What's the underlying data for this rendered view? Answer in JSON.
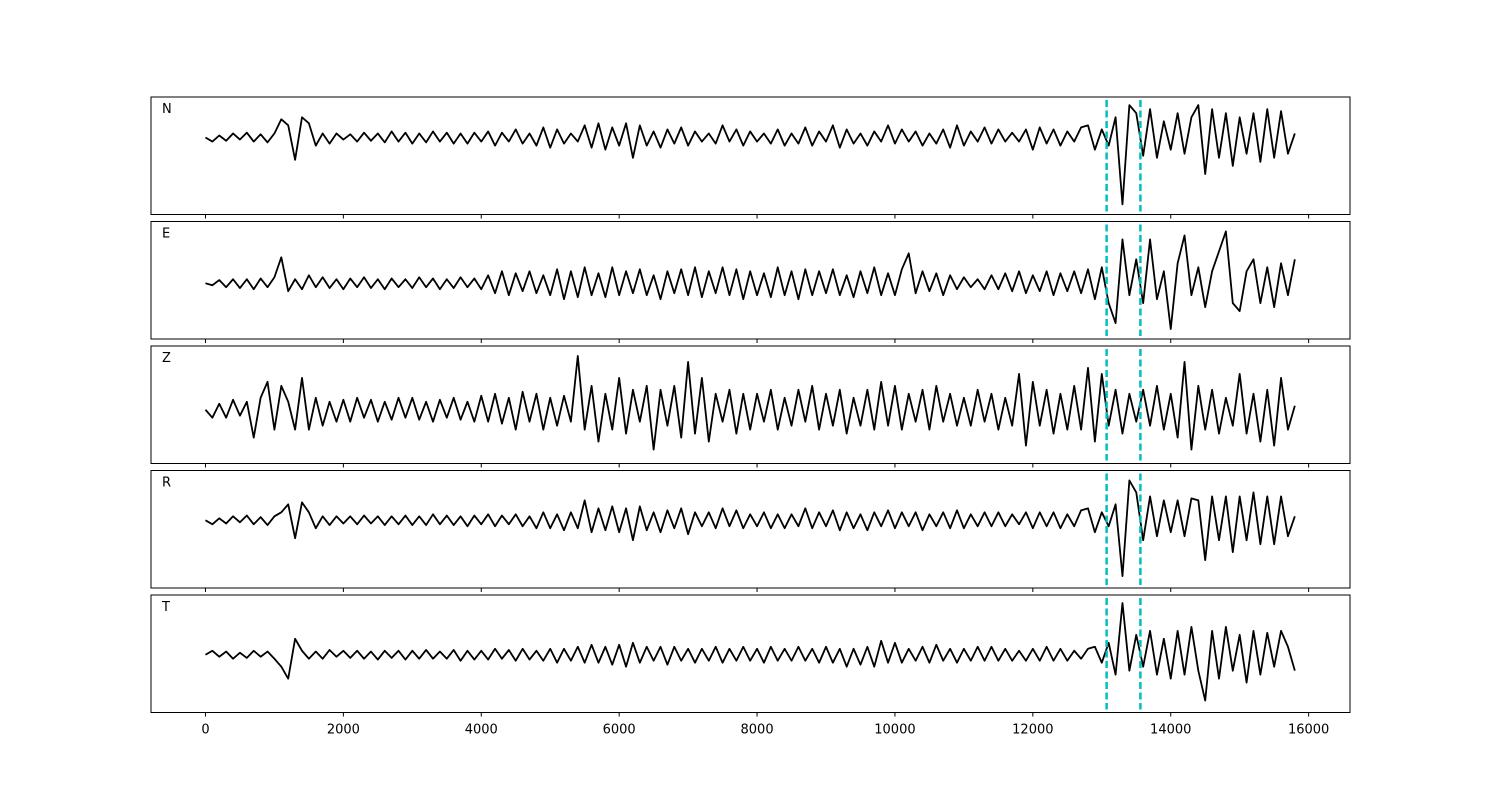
{
  "chart_data": {
    "type": "line",
    "x": [
      0,
      100,
      200,
      300,
      400,
      500,
      600,
      700,
      800,
      900,
      1000,
      1100,
      1200,
      1300,
      1400,
      1500,
      1600,
      1700,
      1800,
      1900,
      2000,
      2100,
      2200,
      2300,
      2400,
      2500,
      2600,
      2700,
      2800,
      2900,
      3000,
      3100,
      3200,
      3300,
      3400,
      3500,
      3600,
      3700,
      3800,
      3900,
      4000,
      4100,
      4200,
      4300,
      4400,
      4500,
      4600,
      4700,
      4800,
      4900,
      5000,
      5100,
      5200,
      5300,
      5400,
      5500,
      5600,
      5700,
      5800,
      5900,
      6000,
      6100,
      6200,
      6300,
      6400,
      6500,
      6600,
      6700,
      6800,
      6900,
      7000,
      7100,
      7200,
      7300,
      7400,
      7500,
      7600,
      7700,
      7800,
      7900,
      8000,
      8100,
      8200,
      8300,
      8400,
      8500,
      8600,
      8700,
      8800,
      8900,
      9000,
      9100,
      9200,
      9300,
      9400,
      9500,
      9600,
      9700,
      9800,
      9900,
      10000,
      10100,
      10200,
      10300,
      10400,
      10500,
      10600,
      10700,
      10800,
      10900,
      11000,
      11100,
      11200,
      11300,
      11400,
      11500,
      11600,
      11700,
      11800,
      11900,
      12000,
      12100,
      12200,
      12300,
      12400,
      12500,
      12600,
      12700,
      12800,
      12900,
      13000,
      13100,
      13200,
      13300,
      13400,
      13500,
      13600,
      13700,
      13800,
      13900,
      14000,
      14100,
      14200,
      14300,
      14400,
      14500,
      14600,
      14700,
      14800,
      14900,
      15000,
      15100,
      15200,
      15300,
      15400,
      15500,
      15600,
      15700,
      15800
    ],
    "xlim": [
      -790,
      16600
    ],
    "xticks": [
      0,
      2000,
      4000,
      6000,
      8000,
      10000,
      12000,
      14000,
      16000
    ],
    "markers": [
      13070,
      13560
    ],
    "marker_color": "#00bfbf",
    "series": [
      {
        "name": "N",
        "color": "#000000",
        "ylim": [
          -1.9,
          1.0
        ],
        "values": [
          0,
          -0.1,
          0.05,
          -0.08,
          0.1,
          -0.05,
          0.12,
          -0.1,
          0.08,
          -0.12,
          0.1,
          0.45,
          0.3,
          -0.55,
          0.5,
          0.35,
          -0.2,
          0.1,
          -0.15,
          0.1,
          -0.05,
          0.08,
          -0.1,
          0.12,
          -0.08,
          0.1,
          -0.12,
          0.15,
          -0.1,
          0.12,
          -0.15,
          0.1,
          -0.12,
          0.15,
          -0.1,
          0.12,
          -0.15,
          0.1,
          -0.15,
          0.12,
          -0.1,
          0.15,
          -0.2,
          0.12,
          -0.1,
          0.2,
          -0.15,
          0.1,
          -0.2,
          0.25,
          -0.25,
          0.2,
          -0.15,
          0.1,
          -0.1,
          0.3,
          -0.25,
          0.35,
          -0.3,
          0.25,
          -0.2,
          0.35,
          -0.5,
          0.3,
          -0.2,
          0.15,
          -0.25,
          0.2,
          -0.15,
          0.25,
          -0.2,
          0.15,
          -0.1,
          0.1,
          -0.15,
          0.3,
          -0.1,
          0.2,
          -0.2,
          0.15,
          -0.1,
          0.1,
          -0.15,
          0.2,
          -0.2,
          0.1,
          -0.15,
          0.25,
          -0.2,
          0.15,
          -0.1,
          0.3,
          -0.25,
          0.2,
          -0.15,
          0.1,
          -0.2,
          0.15,
          -0.1,
          0.3,
          -0.15,
          0.2,
          -0.1,
          0.15,
          -0.2,
          0.1,
          -0.15,
          0.2,
          -0.25,
          0.3,
          -0.2,
          0.15,
          -0.1,
          0.25,
          -0.15,
          0.2,
          -0.1,
          0.12,
          -0.1,
          0.2,
          -0.3,
          0.25,
          -0.15,
          0.2,
          -0.2,
          0.15,
          -0.1,
          0.25,
          0.3,
          -0.3,
          0.2,
          -0.2,
          0.5,
          -1.65,
          0.8,
          0.6,
          -0.45,
          0.7,
          -0.5,
          0.4,
          -0.3,
          0.6,
          -0.4,
          0.5,
          0.8,
          -0.9,
          0.7,
          -0.5,
          0.6,
          -0.7,
          0.5,
          -0.4,
          0.6,
          -0.6,
          0.7,
          -0.5,
          0.65,
          -0.4,
          0.1
        ]
      },
      {
        "name": "E",
        "color": "#000000",
        "ylim": [
          -1.4,
          1.55
        ],
        "values": [
          0,
          -0.05,
          0.08,
          -0.1,
          0.1,
          -0.12,
          0.1,
          -0.15,
          0.12,
          -0.1,
          0.15,
          0.65,
          -0.2,
          0.1,
          -0.15,
          0.2,
          -0.1,
          0.15,
          -0.12,
          0.1,
          -0.15,
          0.12,
          -0.1,
          0.15,
          -0.12,
          0.1,
          -0.15,
          0.12,
          -0.1,
          0.1,
          -0.12,
          0.15,
          -0.1,
          0.12,
          -0.15,
          0.1,
          -0.12,
          0.15,
          -0.1,
          0.12,
          -0.15,
          0.2,
          -0.25,
          0.3,
          -0.3,
          0.25,
          -0.2,
          0.3,
          -0.25,
          0.2,
          -0.3,
          0.35,
          -0.4,
          0.3,
          -0.35,
          0.4,
          -0.3,
          0.25,
          -0.35,
          0.4,
          -0.3,
          0.3,
          -0.25,
          0.35,
          -0.3,
          0.2,
          -0.4,
          0.3,
          -0.25,
          0.35,
          -0.3,
          0.4,
          -0.35,
          0.3,
          -0.25,
          0.4,
          -0.3,
          0.35,
          -0.4,
          0.3,
          -0.3,
          0.25,
          -0.35,
          0.4,
          -0.3,
          0.3,
          -0.4,
          0.35,
          -0.3,
          0.3,
          -0.25,
          0.35,
          -0.3,
          0.2,
          -0.35,
          0.3,
          -0.25,
          0.4,
          -0.3,
          0.25,
          -0.3,
          0.35,
          0.75,
          -0.25,
          0.3,
          -0.2,
          0.25,
          -0.3,
          0.2,
          -0.15,
          0.15,
          -0.1,
          0.1,
          -0.15,
          0.2,
          -0.15,
          0.25,
          -0.2,
          0.3,
          -0.25,
          0.2,
          -0.2,
          0.3,
          -0.3,
          0.25,
          -0.2,
          0.3,
          -0.25,
          0.35,
          -0.4,
          0.4,
          -0.5,
          -1.0,
          1.1,
          -0.3,
          0.6,
          -0.5,
          1.1,
          -0.4,
          0.3,
          -1.15,
          0.5,
          1.2,
          -0.3,
          0.4,
          -0.6,
          0.3,
          0.8,
          1.3,
          -0.5,
          -0.7,
          0.3,
          0.6,
          -0.5,
          0.4,
          -0.6,
          0.5,
          -0.3,
          0.6
        ]
      },
      {
        "name": "Z",
        "color": "#000000",
        "ylim": [
          -1.35,
          1.6
        ],
        "values": [
          0,
          -0.2,
          0.15,
          -0.2,
          0.25,
          -0.15,
          0.2,
          -0.7,
          0.3,
          0.7,
          -0.5,
          0.6,
          0.2,
          -0.5,
          0.8,
          -0.5,
          0.3,
          -0.4,
          0.2,
          -0.3,
          0.25,
          -0.3,
          0.3,
          -0.2,
          0.25,
          -0.3,
          0.2,
          -0.25,
          0.3,
          -0.2,
          0.3,
          -0.25,
          0.2,
          -0.3,
          0.25,
          -0.2,
          0.3,
          -0.25,
          0.2,
          -0.3,
          0.35,
          -0.3,
          0.4,
          -0.35,
          0.3,
          -0.5,
          0.45,
          -0.3,
          0.4,
          -0.5,
          0.3,
          -0.4,
          0.35,
          -0.3,
          1.35,
          -0.5,
          0.6,
          -0.8,
          0.4,
          -0.5,
          0.8,
          -0.6,
          0.5,
          -0.3,
          0.6,
          -1.0,
          0.5,
          -0.4,
          0.6,
          -0.7,
          1.2,
          -0.6,
          0.8,
          -0.8,
          0.4,
          -0.3,
          0.5,
          -0.6,
          0.4,
          -0.5,
          0.4,
          -0.3,
          0.5,
          -0.5,
          0.3,
          -0.4,
          0.5,
          -0.3,
          0.6,
          -0.5,
          0.4,
          -0.4,
          0.5,
          -0.6,
          0.3,
          -0.4,
          0.5,
          -0.5,
          0.7,
          -0.4,
          0.6,
          -0.5,
          0.4,
          -0.3,
          0.5,
          -0.5,
          0.6,
          -0.3,
          0.4,
          -0.4,
          0.3,
          -0.4,
          0.5,
          -0.3,
          0.4,
          -0.5,
          0.3,
          -0.4,
          0.9,
          -0.9,
          0.7,
          -0.4,
          0.5,
          -0.6,
          0.4,
          -0.5,
          0.6,
          -0.5,
          1.05,
          -0.8,
          0.9,
          -0.4,
          0.5,
          -0.6,
          0.4,
          -0.3,
          0.5,
          -0.4,
          0.6,
          -0.5,
          0.4,
          -0.7,
          1.2,
          -1.0,
          0.6,
          -0.5,
          0.5,
          -0.6,
          0.3,
          -0.4,
          0.9,
          -0.6,
          0.4,
          -0.8,
          0.5,
          -0.9,
          0.8,
          -0.5,
          0.1
        ]
      },
      {
        "name": "R",
        "color": "#000000",
        "ylim": [
          -1.7,
          1.25
        ],
        "values": [
          0,
          -0.1,
          0.05,
          -0.08,
          0.1,
          -0.05,
          0.12,
          -0.1,
          0.08,
          -0.12,
          0.1,
          0.2,
          0.4,
          -0.45,
          0.45,
          0.2,
          -0.2,
          0.1,
          -0.12,
          0.1,
          -0.08,
          0.1,
          -0.1,
          0.12,
          -0.08,
          0.1,
          -0.12,
          0.1,
          -0.1,
          0.12,
          -0.12,
          0.1,
          -0.12,
          0.15,
          -0.1,
          0.12,
          -0.12,
          0.1,
          -0.15,
          0.12,
          -0.1,
          0.15,
          -0.15,
          0.12,
          -0.1,
          0.15,
          -0.15,
          0.1,
          -0.2,
          0.2,
          -0.2,
          0.15,
          -0.25,
          0.2,
          -0.2,
          0.5,
          -0.3,
          0.3,
          -0.25,
          0.35,
          -0.3,
          0.3,
          -0.5,
          0.35,
          -0.25,
          0.2,
          -0.3,
          0.25,
          -0.2,
          0.3,
          -0.35,
          0.2,
          -0.15,
          0.2,
          -0.2,
          0.3,
          -0.15,
          0.25,
          -0.2,
          0.15,
          -0.15,
          0.2,
          -0.2,
          0.15,
          -0.2,
          0.15,
          -0.15,
          0.3,
          -0.2,
          0.2,
          -0.15,
          0.25,
          -0.25,
          0.2,
          -0.2,
          0.15,
          -0.25,
          0.2,
          -0.15,
          0.25,
          -0.2,
          0.2,
          -0.15,
          0.2,
          -0.25,
          0.15,
          -0.15,
          0.2,
          -0.2,
          0.25,
          -0.2,
          0.15,
          -0.15,
          0.2,
          -0.15,
          0.2,
          -0.15,
          0.15,
          -0.1,
          0.2,
          -0.2,
          0.2,
          -0.15,
          0.2,
          -0.2,
          0.15,
          -0.15,
          0.25,
          0.3,
          -0.3,
          0.2,
          -0.15,
          0.4,
          -1.4,
          1.0,
          0.7,
          -0.5,
          0.6,
          -0.4,
          0.5,
          -0.3,
          0.5,
          -0.4,
          0.55,
          0.5,
          -1.0,
          0.6,
          -0.5,
          0.6,
          -0.8,
          0.6,
          -0.5,
          0.7,
          -0.6,
          0.6,
          -0.6,
          0.6,
          -0.4,
          0.1
        ]
      },
      {
        "name": "T",
        "color": "#000000",
        "ylim": [
          -1.45,
          1.5
        ],
        "values": [
          0,
          0.1,
          -0.05,
          0.08,
          -0.1,
          0.05,
          -0.08,
          0.1,
          -0.05,
          0.08,
          -0.1,
          -0.3,
          -0.6,
          0.4,
          0.1,
          -0.1,
          0.08,
          -0.1,
          0.12,
          -0.05,
          0.1,
          -0.08,
          0.1,
          -0.1,
          0.08,
          -0.12,
          0.1,
          -0.08,
          0.1,
          -0.12,
          0.1,
          -0.1,
          0.12,
          -0.1,
          0.08,
          -0.1,
          0.12,
          -0.15,
          0.1,
          -0.12,
          0.1,
          -0.12,
          0.15,
          -0.1,
          0.12,
          -0.15,
          0.15,
          -0.12,
          0.1,
          -0.15,
          0.15,
          -0.2,
          0.15,
          -0.15,
          0.2,
          -0.2,
          0.25,
          -0.2,
          0.2,
          -0.25,
          0.25,
          -0.3,
          0.3,
          -0.2,
          0.2,
          -0.15,
          0.2,
          -0.25,
          0.2,
          -0.15,
          0.15,
          -0.2,
          0.15,
          -0.15,
          0.2,
          -0.2,
          0.15,
          -0.15,
          0.2,
          -0.15,
          0.15,
          -0.2,
          0.2,
          -0.15,
          0.15,
          -0.15,
          0.2,
          -0.15,
          0.15,
          -0.2,
          0.2,
          -0.2,
          0.15,
          -0.3,
          0.15,
          -0.25,
          0.2,
          -0.3,
          0.35,
          -0.2,
          0.3,
          -0.2,
          0.15,
          -0.15,
          0.2,
          -0.2,
          0.25,
          -0.15,
          0.15,
          -0.2,
          0.15,
          -0.15,
          0.2,
          -0.15,
          0.2,
          -0.15,
          0.15,
          -0.15,
          0.1,
          -0.15,
          0.15,
          -0.15,
          0.2,
          -0.15,
          0.15,
          -0.15,
          0.1,
          -0.1,
          0.15,
          0.2,
          -0.2,
          0.3,
          -0.5,
          1.3,
          -0.4,
          0.5,
          -0.3,
          0.6,
          -0.5,
          0.4,
          -0.6,
          0.6,
          -0.5,
          0.7,
          -0.4,
          -1.15,
          0.6,
          -0.6,
          0.7,
          -0.4,
          0.5,
          -0.7,
          0.6,
          -0.5,
          0.55,
          -0.3,
          0.6,
          0.2,
          -0.4
        ]
      }
    ]
  }
}
